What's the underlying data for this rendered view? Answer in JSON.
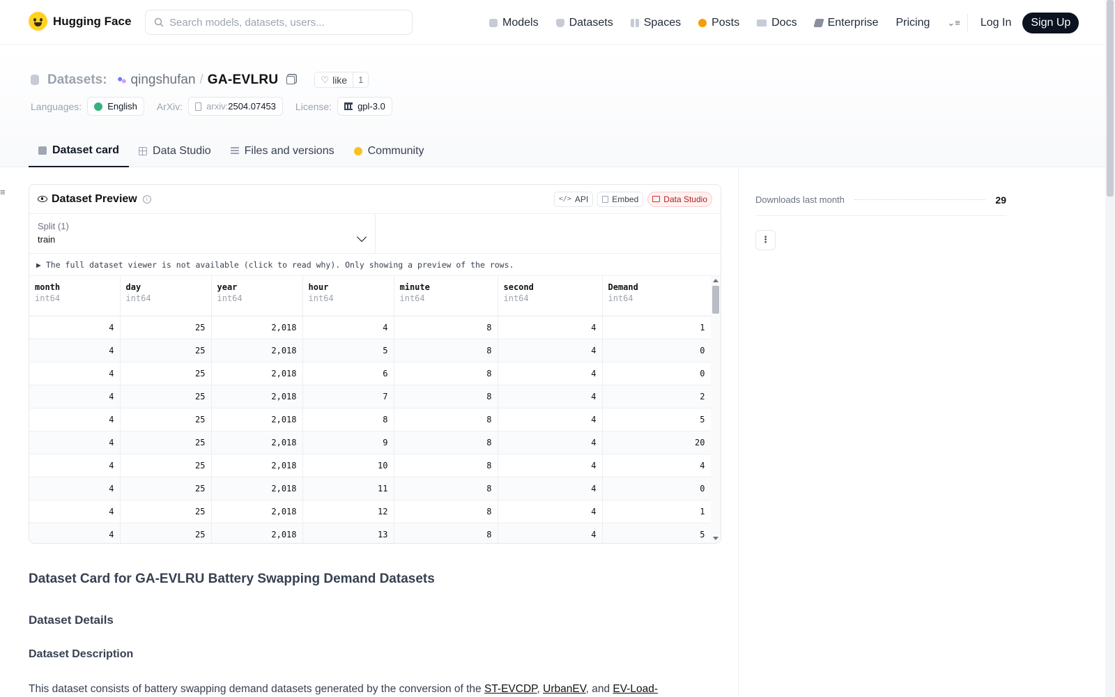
{
  "brand": {
    "name": "Hugging Face"
  },
  "search": {
    "placeholder": "Search models, datasets, users..."
  },
  "nav": {
    "items": [
      "Models",
      "Datasets",
      "Spaces",
      "Posts",
      "Docs",
      "Enterprise",
      "Pricing"
    ],
    "login": "Log In",
    "signup": "Sign Up"
  },
  "repo": {
    "kind": "Datasets:",
    "org": "qingshufan",
    "slash": "/",
    "name": "GA-EVLRU",
    "like_label": "like",
    "like_count": "1"
  },
  "meta": {
    "languages_label": "Languages:",
    "language": "English",
    "arxiv_label": "ArXiv:",
    "arxiv_prefix": "arxiv:",
    "arxiv_id": "2504.07453",
    "license_label": "License:",
    "license": "gpl-3.0"
  },
  "tabs": [
    "Dataset card",
    "Data Studio",
    "Files and versions",
    "Community"
  ],
  "preview": {
    "title": "Dataset Preview",
    "actions": [
      "API",
      "Embed",
      "Data Studio"
    ],
    "split_label": "Split (1)",
    "split_value": "train",
    "notice": "▶ The full dataset viewer is not available (click to read why). Only showing a preview of the rows.",
    "columns": [
      {
        "name": "month",
        "dtype": "int64"
      },
      {
        "name": "day",
        "dtype": "int64"
      },
      {
        "name": "year",
        "dtype": "int64"
      },
      {
        "name": "hour",
        "dtype": "int64"
      },
      {
        "name": "minute",
        "dtype": "int64"
      },
      {
        "name": "second",
        "dtype": "int64"
      },
      {
        "name": "Demand",
        "dtype": "int64"
      }
    ],
    "rows": [
      [
        "4",
        "25",
        "2,018",
        "4",
        "8",
        "4",
        "1"
      ],
      [
        "4",
        "25",
        "2,018",
        "5",
        "8",
        "4",
        "0"
      ],
      [
        "4",
        "25",
        "2,018",
        "6",
        "8",
        "4",
        "0"
      ],
      [
        "4",
        "25",
        "2,018",
        "7",
        "8",
        "4",
        "2"
      ],
      [
        "4",
        "25",
        "2,018",
        "8",
        "8",
        "4",
        "5"
      ],
      [
        "4",
        "25",
        "2,018",
        "9",
        "8",
        "4",
        "20"
      ],
      [
        "4",
        "25",
        "2,018",
        "10",
        "8",
        "4",
        "4"
      ],
      [
        "4",
        "25",
        "2,018",
        "11",
        "8",
        "4",
        "0"
      ],
      [
        "4",
        "25",
        "2,018",
        "12",
        "8",
        "4",
        "1"
      ],
      [
        "4",
        "25",
        "2,018",
        "13",
        "8",
        "4",
        "5"
      ]
    ]
  },
  "card": {
    "h1": "Dataset Card for GA-EVLRU Battery Swapping Demand Datasets",
    "h2": "Dataset Details",
    "h3": "Dataset Description",
    "p_prefix": "This dataset consists of battery swapping demand datasets generated by the conversion of the ",
    "link1": "ST-EVCDP",
    "sep1": ", ",
    "link2": "UrbanEV",
    "sep2": ", and ",
    "link3": "EV-Load-"
  },
  "sidebar": {
    "downloads_label": "Downloads last month",
    "downloads_value": "29",
    "more_label": "⋮"
  }
}
